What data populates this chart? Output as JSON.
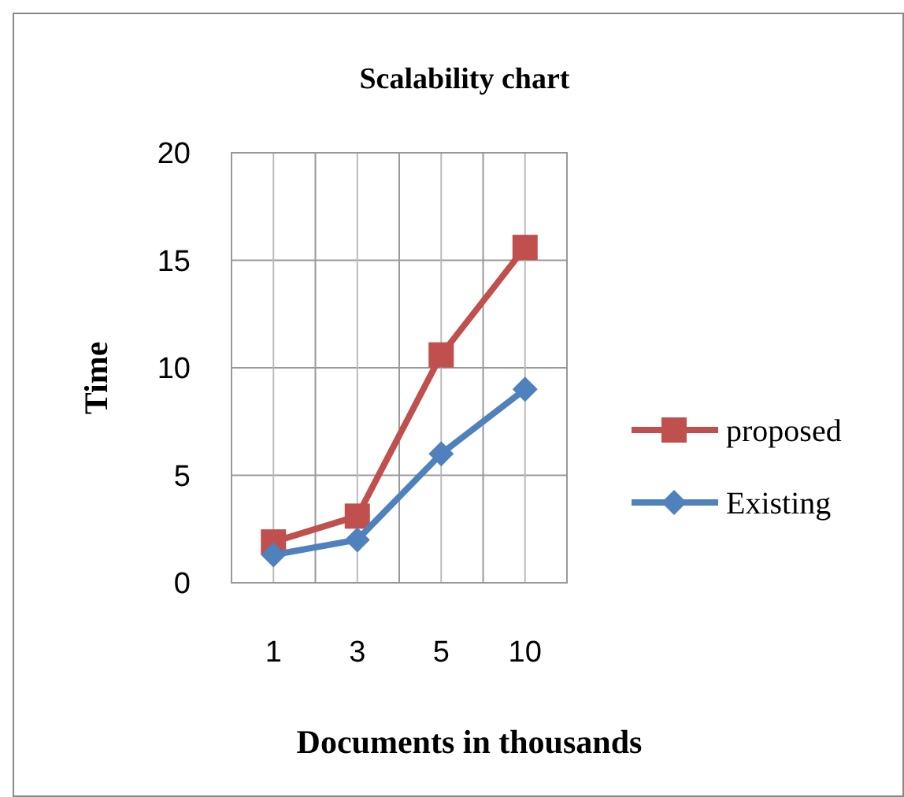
{
  "chart_data": {
    "type": "line",
    "title": "Scalability chart",
    "xlabel": "Documents in thousands",
    "ylabel": "Time",
    "categories": [
      "1",
      "3",
      "5",
      "10"
    ],
    "series": [
      {
        "name": "proposed",
        "color": "#c0504d",
        "values": [
          1.9,
          3.1,
          10.6,
          15.6
        ],
        "marker": "square"
      },
      {
        "name": "Existing",
        "color": "#4f81bd",
        "values": [
          1.3,
          2.0,
          6.0,
          9.0
        ],
        "marker": "diamond"
      }
    ],
    "ylim": [
      0,
      20
    ],
    "yticks": [
      0,
      5,
      10,
      15,
      20
    ],
    "grid": true,
    "legend": "right",
    "line_style": "solid"
  }
}
